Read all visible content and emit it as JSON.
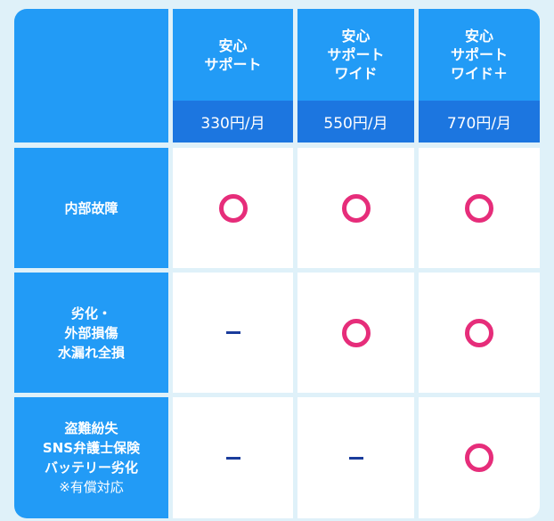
{
  "colors": {
    "header": "#229bf6",
    "price": "#1c76e0",
    "yes": "#e62d7a",
    "no": "#1a3c9c",
    "background": "#dff1f9"
  },
  "plans": [
    {
      "name": "安心\nサポート",
      "price": "330円/月"
    },
    {
      "name": "安心\nサポート\nワイド",
      "price": "550円/月"
    },
    {
      "name": "安心\nサポート\nワイド＋",
      "price": "770円/月"
    }
  ],
  "rows": [
    {
      "label": "内部故障",
      "values": [
        "yes",
        "yes",
        "yes"
      ]
    },
    {
      "label": "劣化・\n外部損傷\n水漏れ全損",
      "values": [
        "no",
        "yes",
        "yes"
      ]
    },
    {
      "label": "盗難紛失\nSNS弁護士保険\nバッテリー劣化",
      "note": "※有償対応",
      "values": [
        "no",
        "no",
        "yes"
      ]
    }
  ]
}
